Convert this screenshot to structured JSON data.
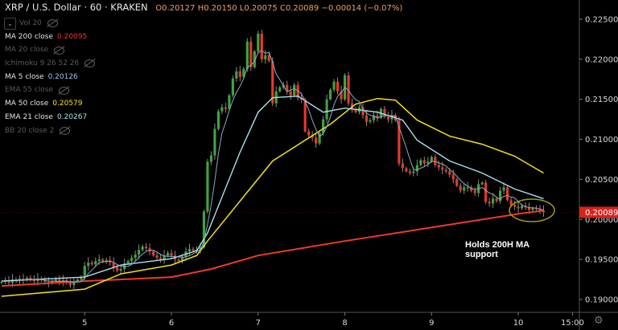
{
  "header": {
    "symbol": "XRP / U.S. Dollar · 60 · KRAKEN",
    "open": "O0.20127",
    "high": "H0.20150",
    "low": "L0.20075",
    "close": "C0.20089",
    "change": "−0.00014 (−0.07%)"
  },
  "legend": [
    {
      "label": "Vol 20",
      "value": null,
      "hidden": true
    },
    {
      "label": "MA 200 close",
      "value": "0.20095",
      "color": "#e53935",
      "hidden": false
    },
    {
      "label": "MA 20 close",
      "value": null,
      "hidden": true
    },
    {
      "label": "Ichimoku 9 26 52 26",
      "value": null,
      "hidden": true
    },
    {
      "label": "MA 5 close",
      "value": "0.20126",
      "color": "#9ec3e6",
      "hidden": false
    },
    {
      "label": "EMA 55 close",
      "value": null,
      "hidden": true
    },
    {
      "label": "MA 50 close",
      "value": "0.20579",
      "color": "#f5e11b",
      "hidden": false
    },
    {
      "label": "EMA 21 close",
      "value": "0.20267",
      "color": "#a8e4f0",
      "hidden": false
    },
    {
      "label": "BB 20 close 2",
      "value": null,
      "hidden": true
    }
  ],
  "annotation": {
    "line1": "Holds 200H MA",
    "line2": "support"
  },
  "colors": {
    "up": "#3fa33f",
    "down": "#e5392b",
    "ma200": "#f03a2a",
    "ma50": "#f2e01c",
    "ema21": "#a9e1ef",
    "ma5": "#8aa9c4",
    "ellipse": "#a39a1e",
    "price_tag": "#d9221c"
  },
  "chart_data": {
    "type": "candlestick",
    "title": "XRP / U.S. Dollar · 60 · KRAKEN",
    "ylim": [
      0.1885,
      0.2275
    ],
    "y_ticks": [
      "0.22500",
      "0.22000",
      "0.21500",
      "0.21000",
      "0.20500",
      "0.20000",
      "0.19500",
      "0.19000"
    ],
    "x_ticks": [
      {
        "label": "5",
        "index": 23
      },
      {
        "label": "6",
        "index": 47
      },
      {
        "label": "7",
        "index": 71
      },
      {
        "label": "8",
        "index": 95
      },
      {
        "label": "9",
        "index": 119
      },
      {
        "label": "10",
        "index": 143
      },
      {
        "label": "15:00",
        "index": 158
      }
    ],
    "last_price": "0.20089",
    "first_open": 0.1921,
    "closes": [
      0.1922,
      0.1924,
      0.1921,
      0.1925,
      0.1923,
      0.1926,
      0.1924,
      0.1927,
      0.1925,
      0.1923,
      0.1926,
      0.1924,
      0.1922,
      0.192,
      0.1923,
      0.1925,
      0.1922,
      0.1924,
      0.1921,
      0.1918,
      0.1922,
      0.1925,
      0.1927,
      0.1942,
      0.1946,
      0.1944,
      0.1948,
      0.195,
      0.1947,
      0.1949,
      0.1946,
      0.194,
      0.1936,
      0.1938,
      0.1945,
      0.1948,
      0.1952,
      0.1956,
      0.1962,
      0.1966,
      0.1964,
      0.196,
      0.1955,
      0.1952,
      0.195,
      0.1955,
      0.1958,
      0.1955,
      0.195,
      0.1948,
      0.1953,
      0.196,
      0.1963,
      0.1961,
      0.1962,
      0.1965,
      0.201,
      0.2072,
      0.208,
      0.2113,
      0.2135,
      0.214,
      0.2138,
      0.2155,
      0.2176,
      0.2185,
      0.2178,
      0.2188,
      0.2222,
      0.219,
      0.221,
      0.2232,
      0.22,
      0.2205,
      0.2198,
      0.2145,
      0.216,
      0.2165,
      0.2168,
      0.216,
      0.2155,
      0.2168,
      0.2152,
      0.215,
      0.211,
      0.2105,
      0.2102,
      0.2095,
      0.2108,
      0.2125,
      0.215,
      0.2162,
      0.2172,
      0.216,
      0.215,
      0.218,
      0.2145,
      0.2138,
      0.2134,
      0.214,
      0.213,
      0.2122,
      0.2124,
      0.213,
      0.2127,
      0.2138,
      0.2129,
      0.2125,
      0.213,
      0.2124,
      0.207,
      0.2064,
      0.206,
      0.2058,
      0.206,
      0.2068,
      0.2074,
      0.207,
      0.2072,
      0.2078,
      0.2068,
      0.2065,
      0.2062,
      0.206,
      0.2056,
      0.205,
      0.2042,
      0.2036,
      0.204,
      0.204,
      0.2036,
      0.2033,
      0.2044,
      0.2046,
      0.2022,
      0.202,
      0.2026,
      0.2023,
      0.2036,
      0.204,
      0.2024,
      0.2018,
      0.2016,
      0.2014,
      0.2017,
      0.2015,
      0.2012,
      0.2014,
      0.2013,
      0.2011,
      0.20089
    ],
    "series": [
      {
        "name": "MA 200 close",
        "points": [
          [
            0,
            0.1917
          ],
          [
            23,
            0.1923
          ],
          [
            47,
            0.1928
          ],
          [
            58,
            0.1938
          ],
          [
            71,
            0.1955
          ],
          [
            95,
            0.1973
          ],
          [
            119,
            0.199
          ],
          [
            143,
            0.2007
          ],
          [
            150,
            0.2011
          ]
        ]
      },
      {
        "name": "MA 50 close",
        "points": [
          [
            0,
            0.1904
          ],
          [
            23,
            0.1913
          ],
          [
            33,
            0.1932
          ],
          [
            47,
            0.1943
          ],
          [
            54,
            0.1955
          ],
          [
            57,
            0.1973
          ],
          [
            66,
            0.2023
          ],
          [
            75,
            0.2073
          ],
          [
            84,
            0.2099
          ],
          [
            91,
            0.2119
          ],
          [
            98,
            0.2144
          ],
          [
            104,
            0.2151
          ],
          [
            109,
            0.2149
          ],
          [
            115,
            0.2124
          ],
          [
            124,
            0.2104
          ],
          [
            133,
            0.2094
          ],
          [
            142,
            0.2079
          ],
          [
            150,
            0.2058
          ]
        ]
      },
      {
        "name": "EMA 21 close",
        "points": [
          [
            0,
            0.1923
          ],
          [
            23,
            0.1928
          ],
          [
            33,
            0.1943
          ],
          [
            47,
            0.1951
          ],
          [
            54,
            0.1961
          ],
          [
            57,
            0.1983
          ],
          [
            66,
            0.2084
          ],
          [
            71,
            0.2134
          ],
          [
            75,
            0.2152
          ],
          [
            82,
            0.2154
          ],
          [
            89,
            0.2134
          ],
          [
            95,
            0.2139
          ],
          [
            104,
            0.2134
          ],
          [
            111,
            0.2124
          ],
          [
            115,
            0.2099
          ],
          [
            124,
            0.2073
          ],
          [
            133,
            0.2058
          ],
          [
            142,
            0.2038
          ],
          [
            150,
            0.2026
          ]
        ]
      },
      {
        "name": "MA 5 close",
        "period": 5
      }
    ]
  }
}
